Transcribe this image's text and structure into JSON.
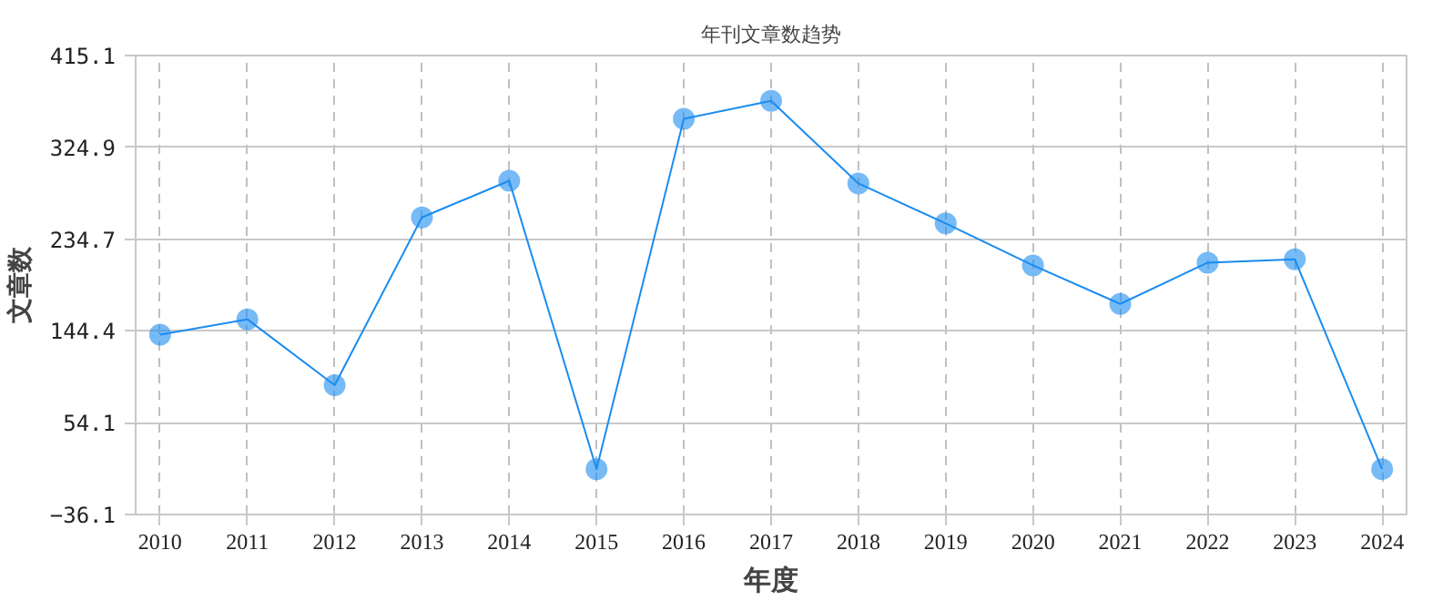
{
  "chart_data": {
    "type": "line",
    "title": "年刊文章数趋势",
    "xlabel": "年度",
    "ylabel": "文章数",
    "categories": [
      "2010",
      "2011",
      "2012",
      "2013",
      "2014",
      "2015",
      "2016",
      "2017",
      "2018",
      "2019",
      "2020",
      "2021",
      "2022",
      "2023",
      "2024"
    ],
    "series": [
      {
        "color": "#1a8cf0",
        "values": [
          140.7,
          155.8,
          91,
          256,
          292,
          8.5,
          352.9,
          370.6,
          289.4,
          250.1,
          208.8,
          170.9,
          211.5,
          214.7,
          8.5
        ]
      }
    ],
    "ylim": [
      -36.1,
      415.1
    ],
    "yticks": [
      -36.1,
      54.1,
      144.4,
      234.7,
      324.9,
      415.1
    ],
    "grid": true,
    "marker": "circle",
    "line_style": "solid"
  }
}
